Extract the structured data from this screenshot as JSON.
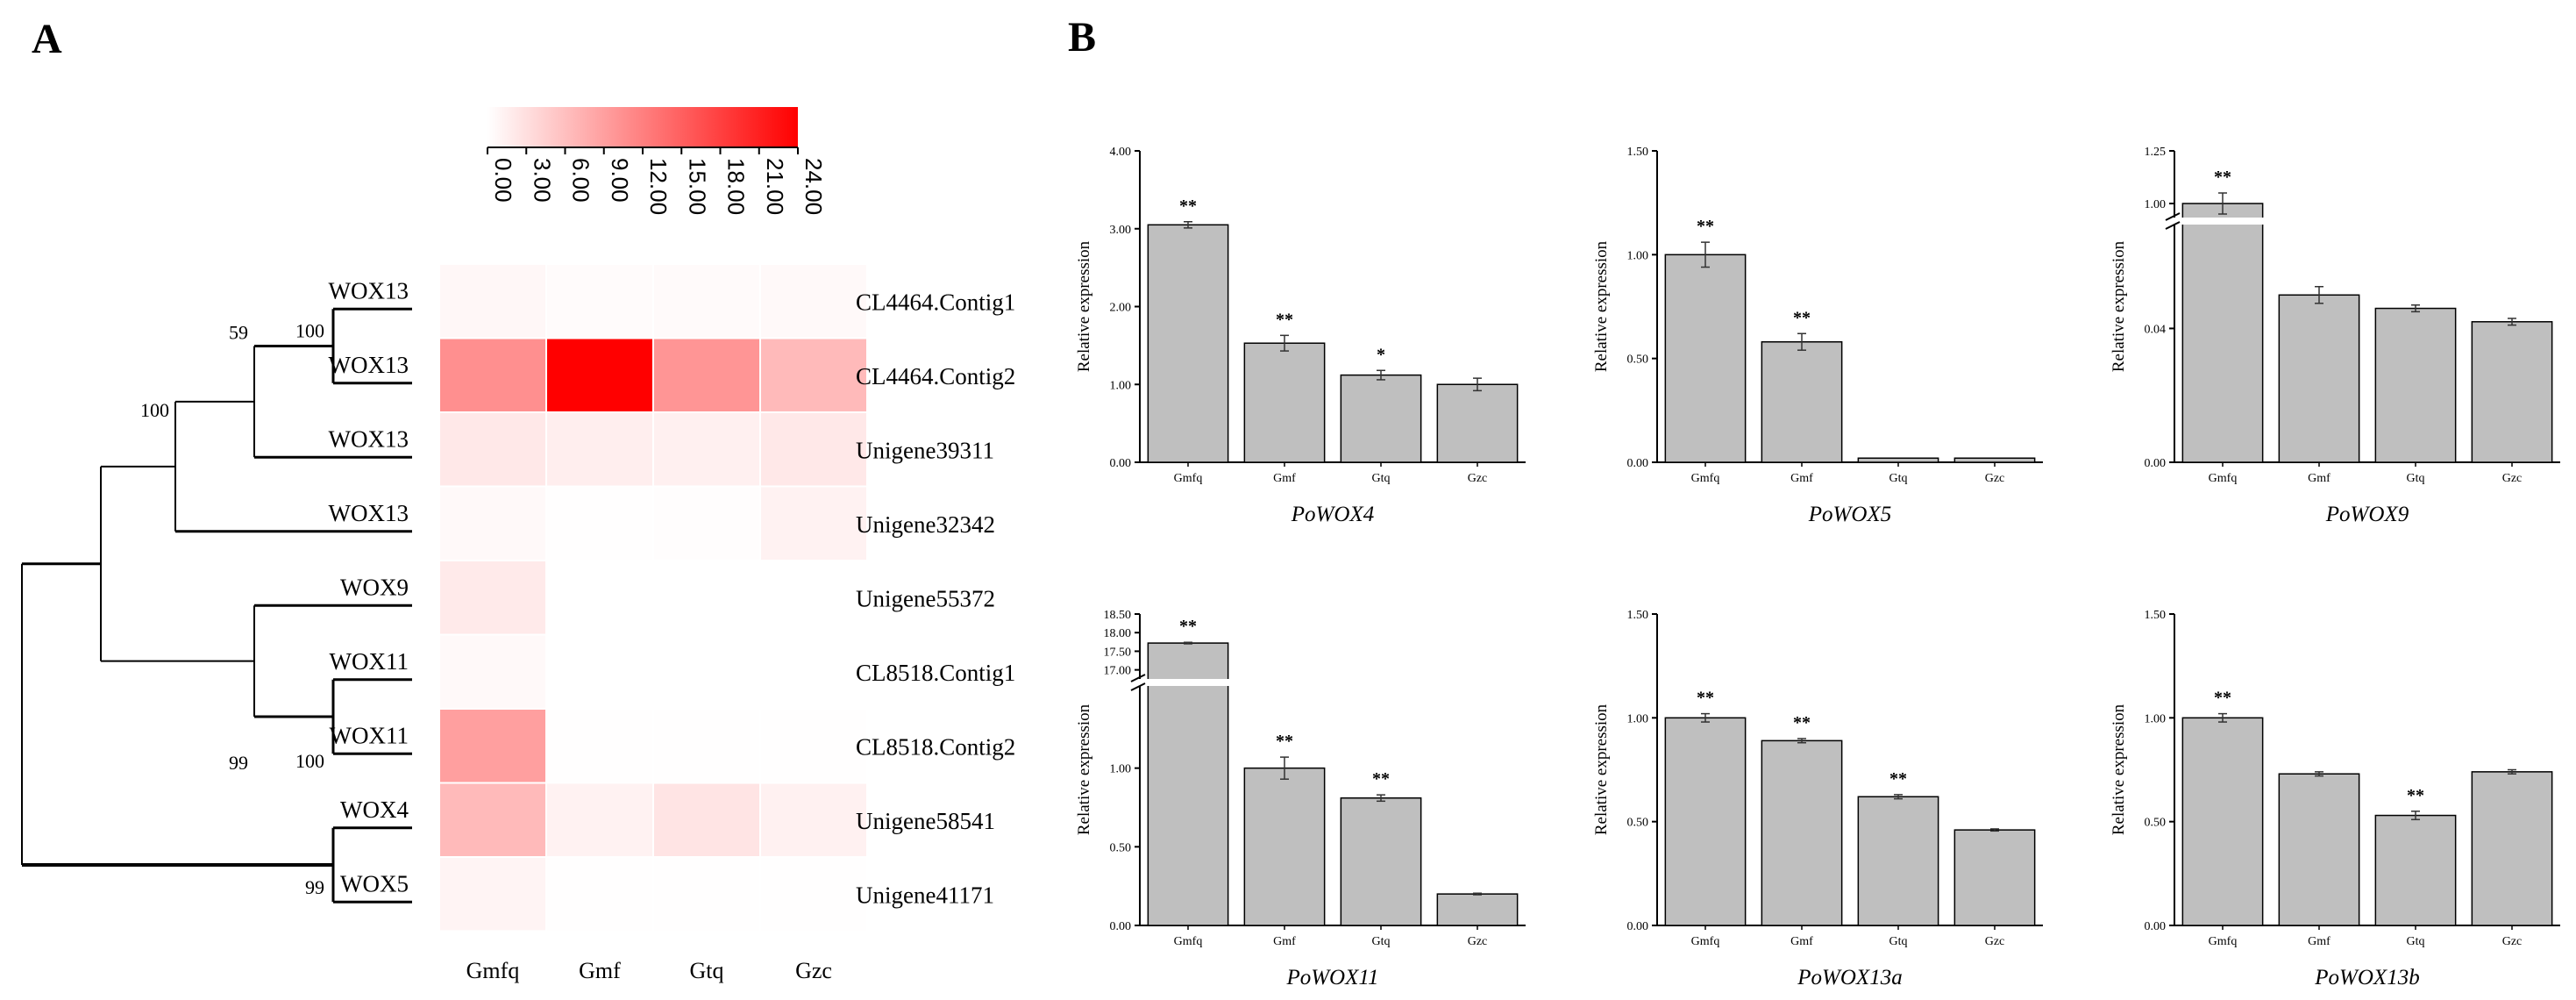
{
  "panels": {
    "a": "A",
    "b": "B"
  },
  "heatmap": {
    "colorbar": {
      "min": 0,
      "max": 24,
      "ticks": [
        "0.00",
        "3.00",
        "6.00",
        "9.00",
        "12.00",
        "15.00",
        "18.00",
        "21.00",
        "24.00"
      ],
      "color_low": "#ffffff",
      "color_high": "#ff0000"
    },
    "columns": [
      "Gmfq",
      "Gmf",
      "Gtq",
      "Gzc"
    ],
    "rows": [
      {
        "gene": "CL4464.Contig1",
        "family": "WOX13",
        "values": [
          0.8,
          0.4,
          0.5,
          0.6
        ]
      },
      {
        "gene": "CL4464.Contig2",
        "family": "WOX13",
        "values": [
          10.5,
          24.0,
          10.0,
          6.5
        ]
      },
      {
        "gene": "Unigene39311",
        "family": "WOX13",
        "values": [
          2.2,
          1.6,
          1.4,
          2.2
        ]
      },
      {
        "gene": "Unigene32342",
        "family": "WOX13",
        "values": [
          0.6,
          0.1,
          0.2,
          1.2
        ]
      },
      {
        "gene": "Unigene55372",
        "family": "WOX9",
        "values": [
          2.0,
          0.0,
          0.0,
          0.0
        ]
      },
      {
        "gene": "CL8518.Contig1",
        "family": "WOX11",
        "values": [
          0.6,
          0.0,
          0.0,
          0.0
        ]
      },
      {
        "gene": "CL8518.Contig2",
        "family": "WOX11",
        "values": [
          9.0,
          0.1,
          0.1,
          0.1
        ]
      },
      {
        "gene": "Unigene58541",
        "family": "WOX4",
        "values": [
          6.5,
          1.2,
          2.5,
          1.3
        ]
      },
      {
        "gene": "Unigene41171",
        "family": "WOX5",
        "values": [
          1.0,
          0.1,
          0.1,
          0.1
        ]
      }
    ],
    "bootstrap": [
      "100",
      "59",
      "100",
      "99",
      "100",
      "99"
    ]
  },
  "chart_data": [
    {
      "type": "bar",
      "title": "PoWOX4",
      "ylabel": "Relative expression",
      "categories": [
        "Gmfq",
        "Gmf",
        "Gtq",
        "Gzc"
      ],
      "values": [
        3.05,
        1.53,
        1.12,
        1.0
      ],
      "errors": [
        0.04,
        0.1,
        0.06,
        0.08
      ],
      "sig": [
        "**",
        "**",
        "*",
        ""
      ],
      "ylim": [
        0,
        4
      ],
      "yticks": [
        "0.00",
        "1.00",
        "2.00",
        "3.00",
        "4.00"
      ]
    },
    {
      "type": "bar",
      "title": "PoWOX5",
      "ylabel": "Relative expression",
      "categories": [
        "Gmfq",
        "Gmf",
        "Gtq",
        "Gzc"
      ],
      "values": [
        1.0,
        0.58,
        0.02,
        0.02
      ],
      "errors": [
        0.06,
        0.04,
        0.0,
        0.0
      ],
      "sig": [
        "**",
        "**",
        "",
        ""
      ],
      "ylim": [
        0,
        1.5
      ],
      "yticks": [
        "0.00",
        "0.50",
        "1.00",
        "1.50"
      ]
    },
    {
      "type": "bar",
      "title": "PoWOX9",
      "ylabel": "Relative expression",
      "categories": [
        "Gmfq",
        "Gmf",
        "Gtq",
        "Gzc"
      ],
      "values": [
        1.0,
        0.05,
        0.046,
        0.042
      ],
      "errors": [
        0.05,
        0.0025,
        0.001,
        0.001
      ],
      "sig": [
        "**",
        "",
        "",
        ""
      ],
      "broken": true,
      "lower_range": [
        0,
        0.07
      ],
      "upper_range": [
        0.95,
        1.25
      ],
      "lower_ticks": [
        {
          "v": 0,
          "label": "0.00"
        },
        {
          "v": 0.04,
          "label": "0.04"
        }
      ],
      "upper_ticks": [
        {
          "v": 1.0,
          "label": "1.00"
        },
        {
          "v": 1.25,
          "label": "1.25"
        }
      ]
    },
    {
      "type": "bar",
      "title": "PoWOX11",
      "ylabel": "Relative expression",
      "categories": [
        "Gmfq",
        "Gmf",
        "Gtq",
        "Gzc"
      ],
      "values": [
        17.72,
        1.0,
        0.81,
        0.2
      ],
      "errors": [
        0.02,
        0.07,
        0.02,
        0.005
      ],
      "sig": [
        "**",
        "**",
        "**",
        ""
      ],
      "broken": true,
      "lower_range": [
        0,
        1.5
      ],
      "upper_range": [
        16.85,
        18.5
      ],
      "lower_ticks": [
        {
          "v": 0,
          "label": "0.00"
        },
        {
          "v": 0.5,
          "label": "0.50"
        },
        {
          "v": 1.0,
          "label": "1.00"
        }
      ],
      "upper_ticks": [
        {
          "v": 17.0,
          "label": "17.00"
        },
        {
          "v": 17.5,
          "label": "17.50"
        },
        {
          "v": 18.0,
          "label": "18.00"
        },
        {
          "v": 18.5,
          "label": "18.50"
        }
      ]
    },
    {
      "type": "bar",
      "title": "PoWOX13a",
      "ylabel": "Relative expression",
      "categories": [
        "Gmfq",
        "Gmf",
        "Gtq",
        "Gzc"
      ],
      "values": [
        1.0,
        0.89,
        0.62,
        0.46
      ],
      "errors": [
        0.02,
        0.01,
        0.01,
        0.005
      ],
      "sig": [
        "**",
        "**",
        "**",
        ""
      ],
      "ylim": [
        0,
        1.5
      ],
      "yticks": [
        "0.00",
        "0.50",
        "1.00",
        "1.50"
      ]
    },
    {
      "type": "bar",
      "title": "PoWOX13b",
      "ylabel": "Relative expression",
      "categories": [
        "Gmfq",
        "Gmf",
        "Gtq",
        "Gzc"
      ],
      "values": [
        1.0,
        0.73,
        0.53,
        0.74
      ],
      "errors": [
        0.02,
        0.01,
        0.02,
        0.01
      ],
      "sig": [
        "**",
        "",
        "**",
        ""
      ],
      "ylim": [
        0,
        1.5
      ],
      "yticks": [
        "0.00",
        "0.50",
        "1.00",
        "1.50"
      ]
    }
  ]
}
